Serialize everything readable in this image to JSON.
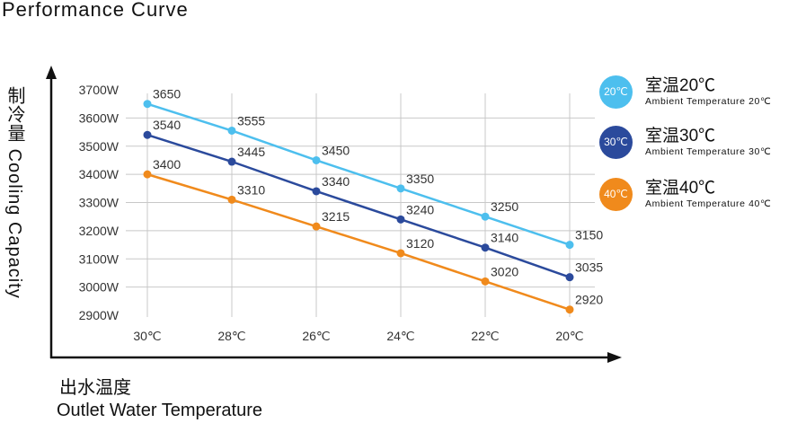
{
  "chart_data": {
    "type": "line",
    "title": "Performance Curve",
    "ylabel_cn": "制冷量",
    "ylabel": "Cooling Capacity",
    "xlabel_cn": "出水温度",
    "xlabel": "Outlet Water Temperature",
    "categories": [
      "30℃",
      "28℃",
      "26℃",
      "24℃",
      "22℃",
      "20℃"
    ],
    "yticks": [
      "3700W",
      "3600W",
      "3500W",
      "3400W",
      "3300W",
      "3200W",
      "3100W",
      "3000W",
      "2900W"
    ],
    "ylim": [
      2900,
      3700
    ],
    "grid": true,
    "legend_position": "right",
    "series": [
      {
        "name_cn": "室温20℃",
        "name": "Ambient Temperature 20℃",
        "badge": "20℃",
        "color": "#4dbfee",
        "values": [
          3650,
          3555,
          3450,
          3350,
          3250,
          3150
        ]
      },
      {
        "name_cn": "室温30℃",
        "name": "Ambient Temperature 30℃",
        "badge": "30℃",
        "color": "#2b4a9c",
        "values": [
          3540,
          3445,
          3340,
          3240,
          3140,
          3035
        ]
      },
      {
        "name_cn": "室温40℃",
        "name": "Ambient Temperature 40℃",
        "badge": "40℃",
        "color": "#f08a1c",
        "values": [
          3400,
          3310,
          3215,
          3120,
          3020,
          2920
        ]
      }
    ]
  }
}
